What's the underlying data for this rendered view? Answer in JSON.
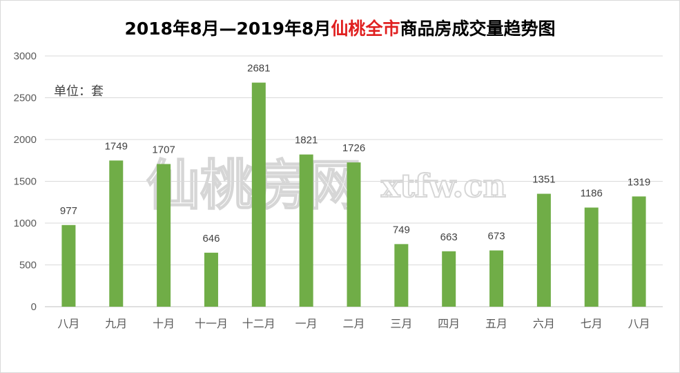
{
  "title": {
    "part1": "2018年8月—2019年8月",
    "highlight": "仙桃全市",
    "part2": "商品房成交量趋势图",
    "highlight_color": "#e02020"
  },
  "unit_label": "单位：套",
  "watermark": {
    "cn": "仙桃房网",
    "en": "xtfw.cn"
  },
  "colors": {
    "bar": "#70ad47",
    "grid": "#d9d9d9",
    "axis": "#bfbfbf"
  },
  "chart_data": {
    "type": "bar",
    "title": "2018年8月—2019年8月仙桃全市商品房成交量趋势图",
    "categories": [
      "八月",
      "九月",
      "十月",
      "十一月",
      "十二月",
      "一月",
      "二月",
      "三月",
      "四月",
      "五月",
      "六月",
      "七月",
      "八月"
    ],
    "values": [
      977,
      1749,
      1707,
      646,
      2681,
      1821,
      1726,
      749,
      663,
      673,
      1351,
      1186,
      1319
    ],
    "yticks": [
      0,
      500,
      1000,
      1500,
      2000,
      2500,
      3000
    ],
    "ylim": [
      0,
      3000
    ],
    "xlabel": "",
    "ylabel": "",
    "grid": true,
    "legend": "none",
    "data_labels": true
  }
}
